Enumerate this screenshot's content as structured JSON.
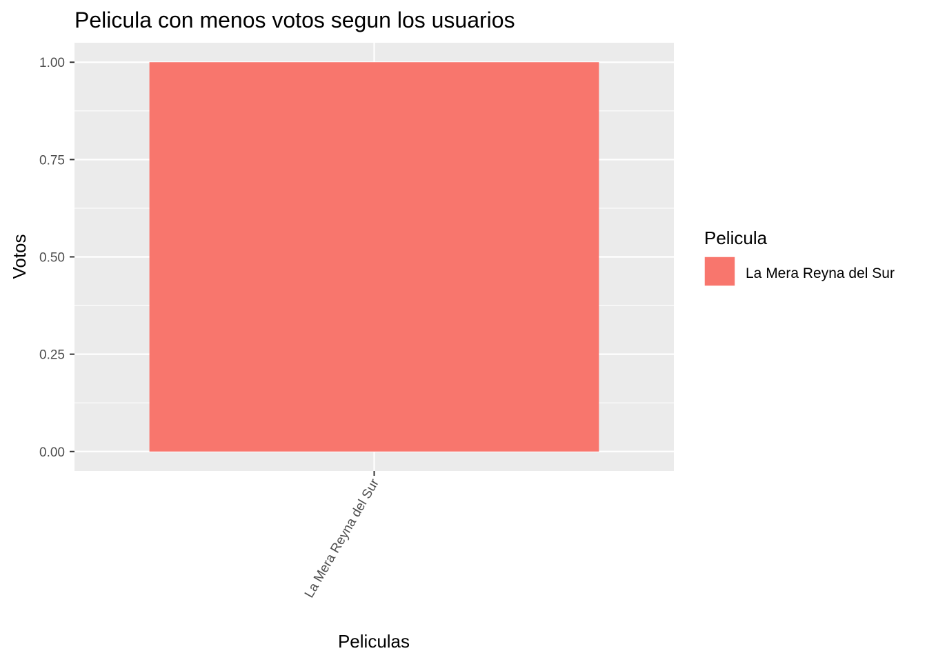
{
  "chart_data": {
    "type": "bar",
    "title": "Pelicula con menos votos segun los usuarios",
    "xlabel": "Peliculas",
    "ylabel": "Votos",
    "categories": [
      "La Mera Reyna del Sur"
    ],
    "values": [
      1
    ],
    "ylim": [
      -0.05,
      1.05
    ],
    "yticks": [
      0,
      0.25,
      0.5,
      0.75,
      1
    ],
    "ytick_labels": [
      "0.00",
      "0.25",
      "0.50",
      "0.75",
      "1.00"
    ],
    "grid": true,
    "legend": {
      "title": "Pelicula",
      "placement": "right",
      "entries": [
        "La Mera Reyna del Sur"
      ]
    },
    "colors": {
      "bar": "#F8766D",
      "panel": "#EBEBEB",
      "grid": "#FFFFFF"
    }
  }
}
